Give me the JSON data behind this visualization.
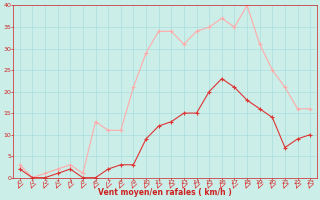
{
  "title": "",
  "xlabel": "Vent moyen/en rafales ( km/h )",
  "x": [
    0,
    1,
    2,
    3,
    4,
    5,
    6,
    7,
    8,
    9,
    10,
    11,
    12,
    13,
    14,
    15,
    16,
    17,
    18,
    19,
    20,
    21,
    22,
    23
  ],
  "wind_avg": [
    2,
    0,
    0,
    1,
    2,
    0,
    0,
    2,
    3,
    3,
    9,
    12,
    13,
    15,
    15,
    20,
    23,
    21,
    18,
    16,
    14,
    7,
    9,
    10
  ],
  "wind_gust": [
    3,
    0,
    1,
    2,
    3,
    1,
    13,
    11,
    11,
    21,
    29,
    34,
    34,
    31,
    34,
    35,
    37,
    35,
    40,
    31,
    25,
    21,
    16,
    16
  ],
  "avg_color": "#dd3333",
  "gust_color": "#ffaaaa",
  "bg_color": "#cceee8",
  "grid_color": "#aadddd",
  "axis_color": "#cc2222",
  "ylim": [
    0,
    40
  ],
  "xlim": [
    -0.5,
    23.5
  ],
  "yticks": [
    0,
    5,
    10,
    15,
    20,
    25,
    30,
    35,
    40
  ],
  "xticks": [
    0,
    1,
    2,
    3,
    4,
    5,
    6,
    7,
    8,
    9,
    10,
    11,
    12,
    13,
    14,
    15,
    16,
    17,
    18,
    19,
    20,
    21,
    22,
    23
  ]
}
